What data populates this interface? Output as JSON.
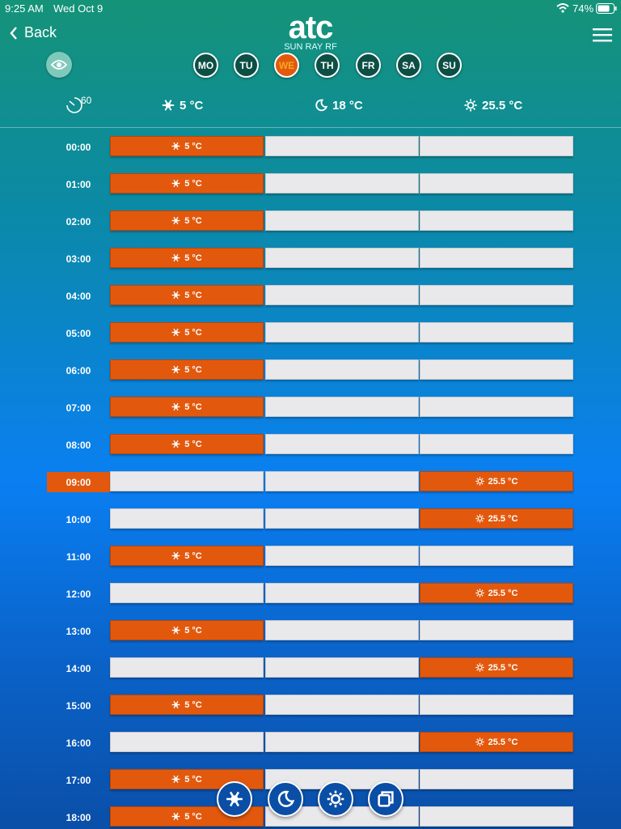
{
  "status": {
    "time": "9:25 AM",
    "date": "Wed Oct 9",
    "battery": "74%"
  },
  "nav": {
    "back": "Back",
    "logo": "atc",
    "tagline": "SUN RAY RF"
  },
  "days": {
    "items": [
      "MO",
      "TU",
      "WE",
      "TH",
      "FR",
      "SA",
      "SU"
    ],
    "active": 2
  },
  "modes": {
    "timer": "60",
    "items": [
      {
        "icon": "snow",
        "label": "5 °C"
      },
      {
        "icon": "moon",
        "label": "18 °C"
      },
      {
        "icon": "sun",
        "label": "25.5 °C"
      }
    ]
  },
  "schedule": {
    "current": 9,
    "rows": [
      {
        "time": "00:00",
        "mode": 0
      },
      {
        "time": "01:00",
        "mode": 0
      },
      {
        "time": "02:00",
        "mode": 0
      },
      {
        "time": "03:00",
        "mode": 0
      },
      {
        "time": "04:00",
        "mode": 0
      },
      {
        "time": "05:00",
        "mode": 0
      },
      {
        "time": "06:00",
        "mode": 0
      },
      {
        "time": "07:00",
        "mode": 0
      },
      {
        "time": "08:00",
        "mode": 0
      },
      {
        "time": "09:00",
        "mode": 2
      },
      {
        "time": "10:00",
        "mode": 2
      },
      {
        "time": "11:00",
        "mode": 0
      },
      {
        "time": "12:00",
        "mode": 2
      },
      {
        "time": "13:00",
        "mode": 0
      },
      {
        "time": "14:00",
        "mode": 2
      },
      {
        "time": "15:00",
        "mode": 0
      },
      {
        "time": "16:00",
        "mode": 2
      },
      {
        "time": "17:00",
        "mode": 0
      },
      {
        "time": "18:00",
        "mode": 0
      }
    ]
  },
  "toolbar": [
    "snow",
    "moon",
    "sun",
    "copy"
  ]
}
